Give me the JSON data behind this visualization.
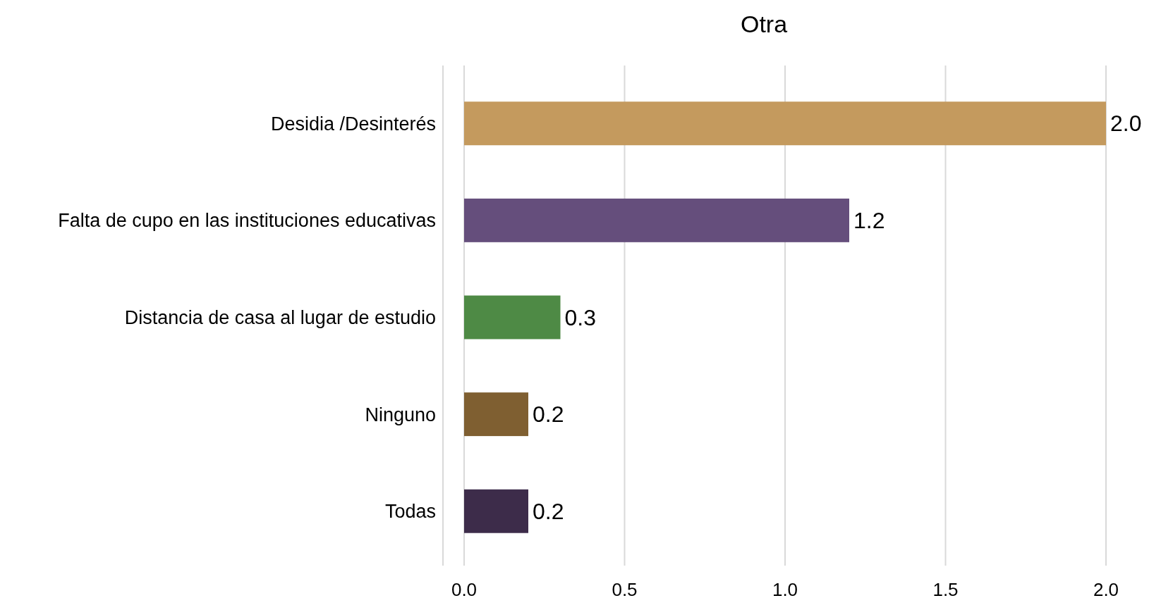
{
  "chart_data": {
    "type": "bar",
    "orientation": "horizontal",
    "title": "Otra",
    "categories": [
      "Desidia /Desinterés",
      "Falta de cupo en las instituciones educativas",
      "Distancia de casa al lugar de estudio",
      "Ninguno",
      "Todas"
    ],
    "values": [
      2.0,
      1.2,
      0.3,
      0.2,
      0.2
    ],
    "value_labels": [
      "2.0",
      "1.2",
      "0.3",
      "0.2",
      "0.2"
    ],
    "colors": [
      "#c49a5e",
      "#654e7c",
      "#4e8a45",
      "#7f5f31",
      "#3d2c4a"
    ],
    "xlim": [
      0,
      2
    ],
    "xticks": [
      {
        "value": 0,
        "label": "0.0"
      },
      {
        "value": 0.5,
        "label": "0.5"
      },
      {
        "value": 1,
        "label": "1.0"
      },
      {
        "value": 1.5,
        "label": "1.5"
      },
      {
        "value": 2,
        "label": "2.0"
      }
    ],
    "grid": "x"
  }
}
